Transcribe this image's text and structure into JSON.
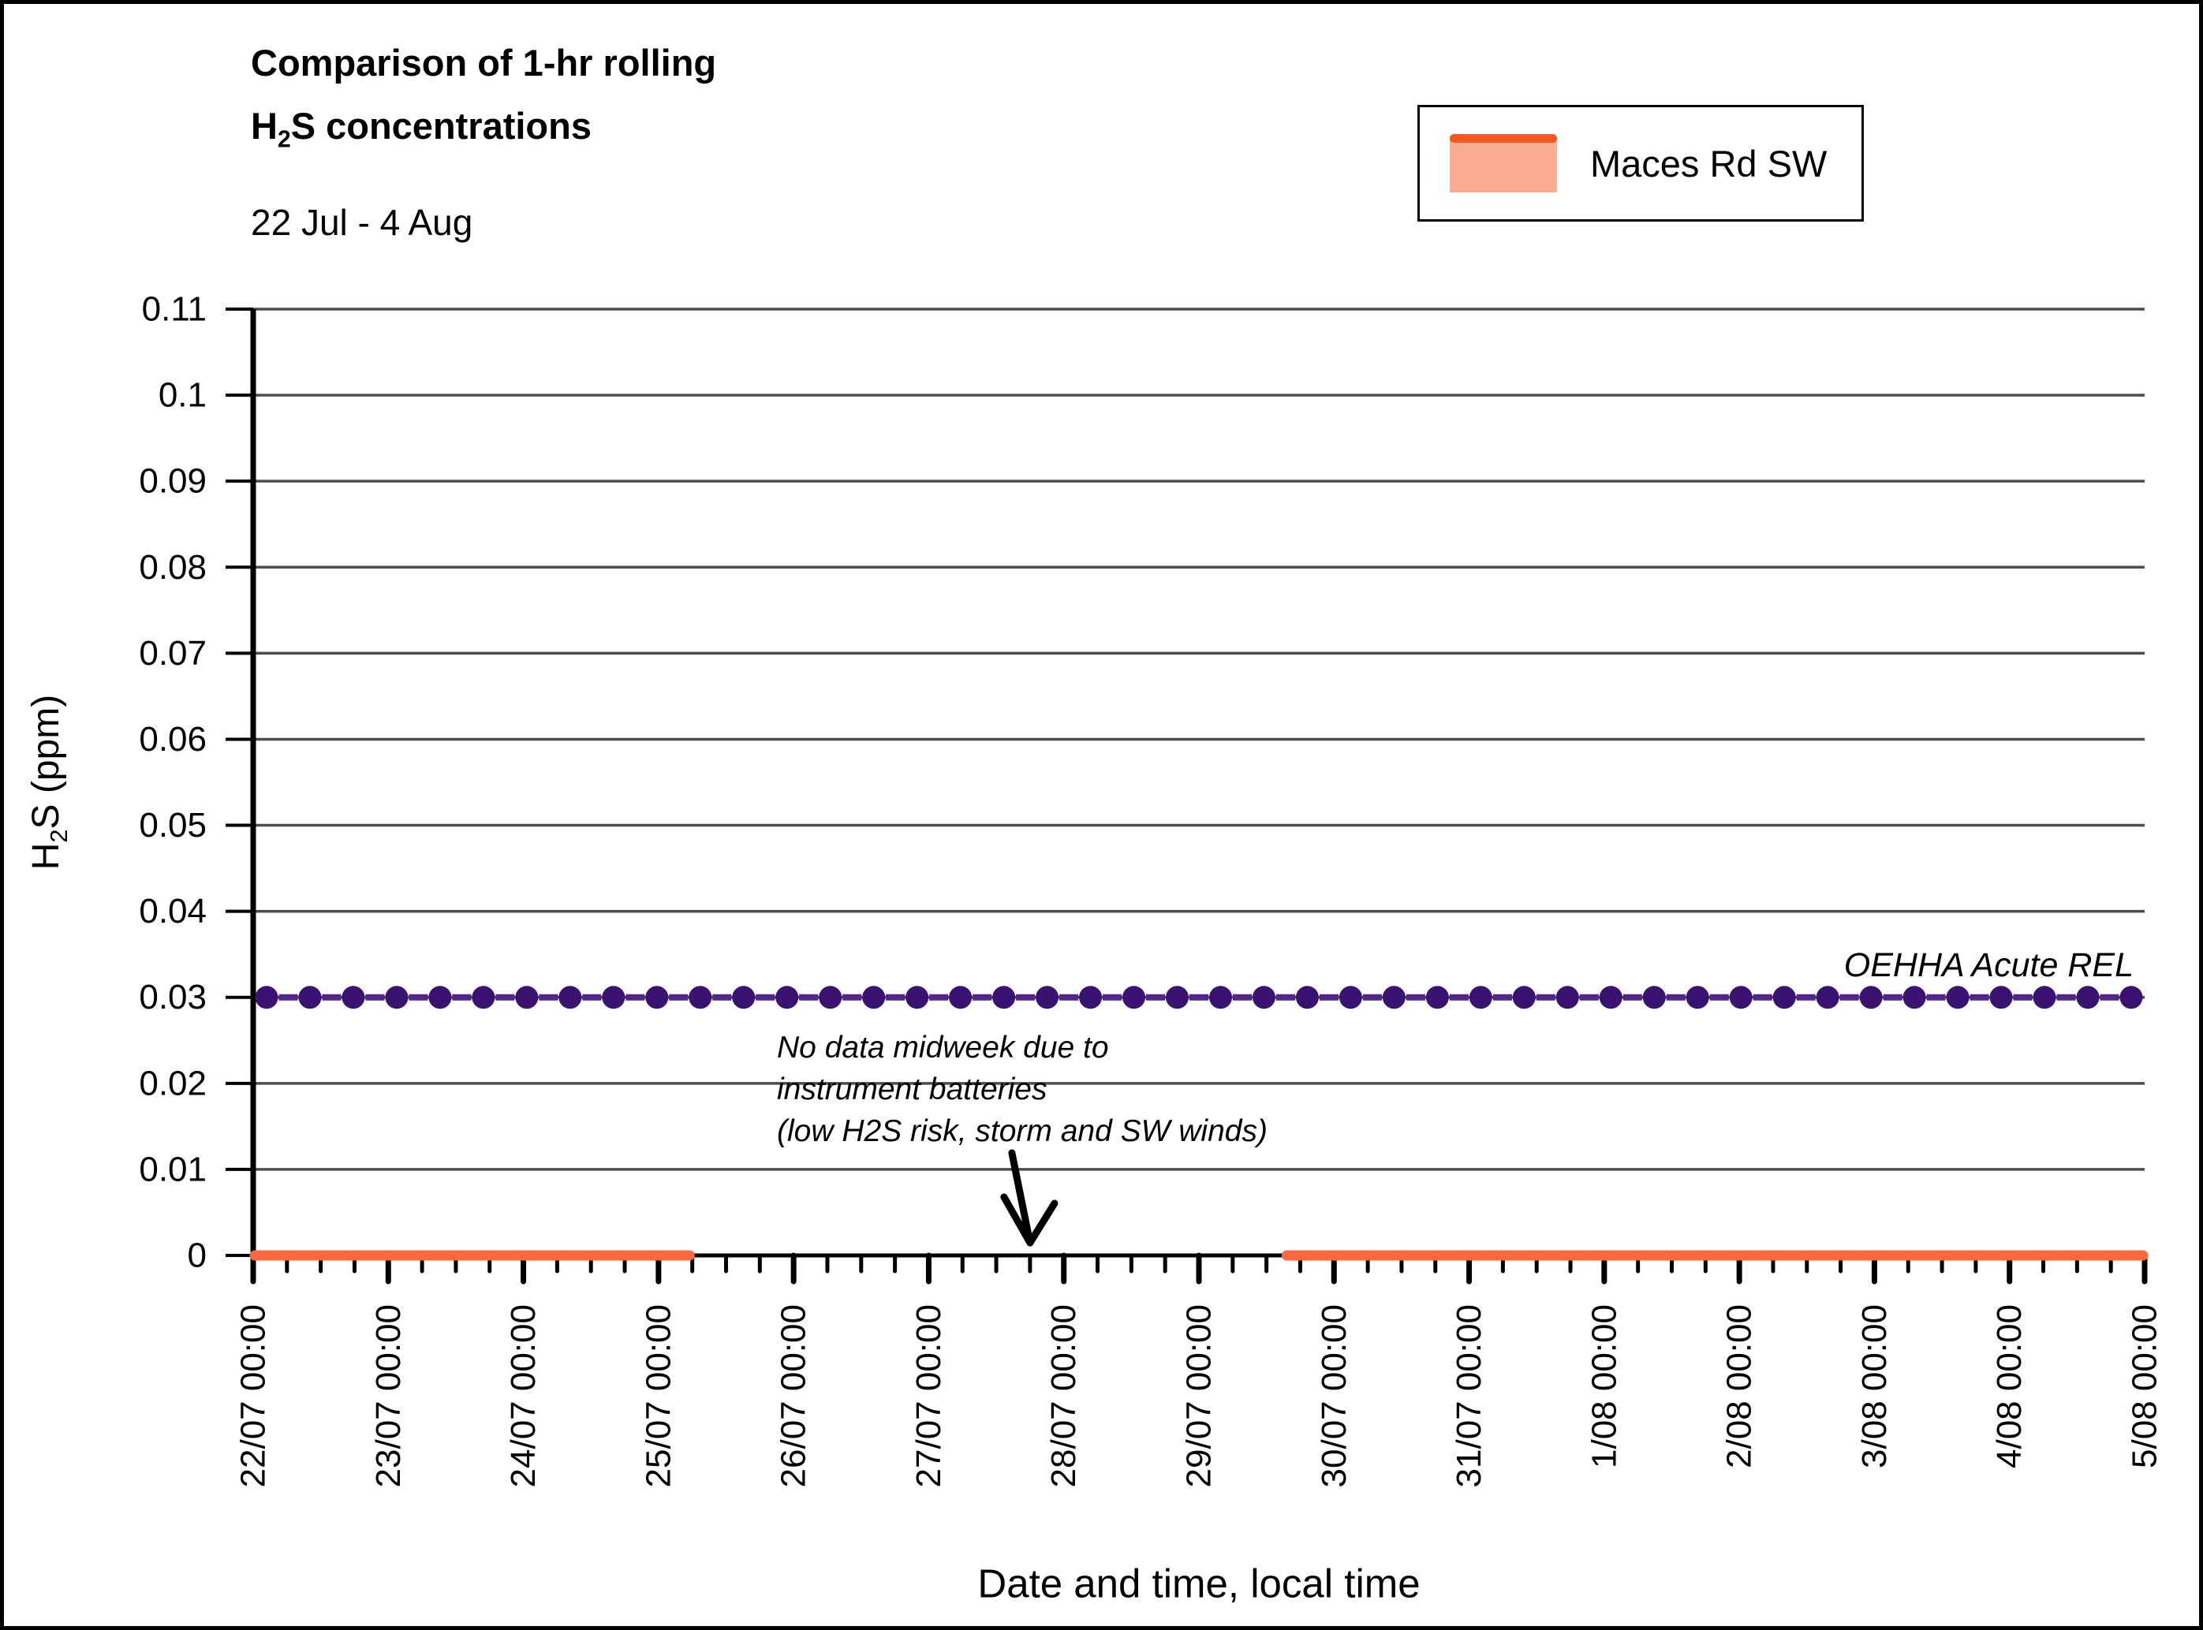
{
  "figure": {
    "title_line1": "Comparison of 1-hr rolling",
    "title_h2s_pre": "H",
    "title_h2s_sub": "2",
    "title_h2s_post": "S concentrations",
    "subtitle": "22 Jul - 4 Aug"
  },
  "legend": {
    "series_label": "Maces Rd SW",
    "line_color": "#F4561E",
    "fill_color": "#FBAD92"
  },
  "axes": {
    "x_title": "Date and time, local time",
    "y_title_pre": "H",
    "y_title_sub": "2",
    "y_title_post": "S (ppm)"
  },
  "chart_data": {
    "type": "line",
    "title": "Comparison of 1-hr rolling H2S concentrations",
    "subtitle": "22 Jul - 4 Aug",
    "xlabel": "Date and time, local time",
    "ylabel": "H2S (ppm)",
    "ylim": [
      0,
      0.11
    ],
    "ytick_labels": [
      "0",
      "0.01",
      "0.02",
      "0.03",
      "0.04",
      "0.05",
      "0.06",
      "0.07",
      "0.08",
      "0.09",
      "0.1",
      "0.11"
    ],
    "xtick_labels": [
      "22/07 00:00",
      "23/07 00:00",
      "24/07 00:00",
      "25/07 00:00",
      "26/07 00:00",
      "27/07 00:00",
      "28/07 00:00",
      "29/07 00:00",
      "30/07 00:00",
      "31/07 00:00",
      "1/08 00:00",
      "2/08 00:00",
      "3/08 00:00",
      "4/08 00:00",
      "5/08 00:00"
    ],
    "x_minor_tick_hours": 6,
    "grid": "horizontal",
    "gridline_color": "#4D4D4D",
    "legend_position": "top-right",
    "series": [
      {
        "name": "Maces Rd SW",
        "style": "solid",
        "color": "#F8693F",
        "value_ppm": 0.0,
        "segments_days": [
          [
            0,
            3.23
          ],
          [
            7.65,
            14
          ]
        ]
      },
      {
        "name": "OEHHA Acute REL",
        "style": "dashed-with-round-markers",
        "line_color": "#53258C",
        "marker_color": "#3A1272",
        "value_ppm": 0.03,
        "label": "OEHHA Acute REL"
      }
    ],
    "annotation": {
      "line1": "No data midweek due to",
      "line2": "instrument batteries",
      "line3": "(low H2S risk, storm and SW winds)",
      "arrow_target_day": 5.75
    }
  }
}
